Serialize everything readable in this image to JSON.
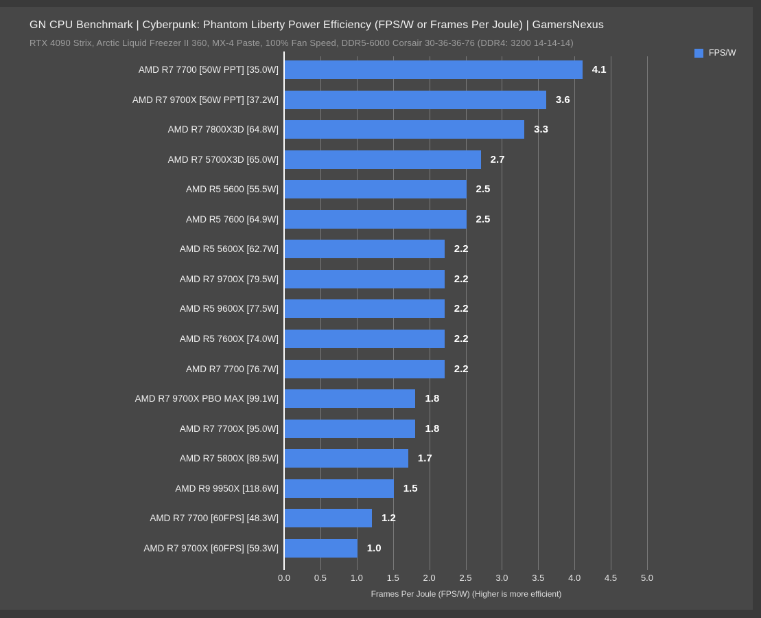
{
  "header": {
    "title": "GN CPU Benchmark | Cyberpunk: Phantom Liberty Power Efficiency (FPS/W or Frames Per Joule) | GamersNexus",
    "subtitle": "RTX 4090 Strix, Arctic Liquid Freezer II 360, MX-4 Paste, 100% Fan Speed, DDR5-6000 Corsair 30-36-36-76 (DDR4: 3200 14-14-14)"
  },
  "legend": {
    "label": "FPS/W",
    "color": "#4a86e8"
  },
  "colors": {
    "background": "#474747",
    "frame": "#3a3a3a",
    "bar": "#4a86e8",
    "gridline": "#7a7a7a",
    "axis_line": "#ffffff",
    "title_text": "#f2f2f2",
    "subtitle_text": "#9d9d9d",
    "value_text": "#ffffff"
  },
  "chart_data": {
    "type": "bar",
    "orientation": "horizontal",
    "title": "GN CPU Benchmark | Cyberpunk: Phantom Liberty Power Efficiency (FPS/W or Frames Per Joule) | GamersNexus",
    "subtitle": "RTX 4090 Strix, Arctic Liquid Freezer II 360, MX-4 Paste, 100% Fan Speed, DDR5-6000 Corsair 30-36-36-76 (DDR4: 3200 14-14-14)",
    "legend_entries": [
      "FPS/W"
    ],
    "legend_position": "top-right",
    "grid": true,
    "xlabel": "Frames Per Joule (FPS/W) (Higher is more efficient)",
    "ylabel": "",
    "xlim": [
      0.0,
      5.0
    ],
    "xtick_labels": [
      "0.0",
      "0.5",
      "1.0",
      "1.5",
      "2.0",
      "2.5",
      "3.0",
      "3.5",
      "4.0",
      "4.5",
      "5.0"
    ],
    "categories": [
      "AMD R7 7700 [50W PPT] [35.0W]",
      "AMD R7 9700X [50W PPT] [37.2W]",
      "AMD R7 7800X3D [64.8W]",
      "AMD R7 5700X3D [65.0W]",
      "AMD R5 5600 [55.5W]",
      "AMD R5 7600 [64.9W]",
      "AMD R5 5600X [62.7W]",
      "AMD R7 9700X [79.5W]",
      "AMD R5 9600X [77.5W]",
      "AMD R5 7600X [74.0W]",
      "AMD R7 7700 [76.7W]",
      "AMD R7 9700X PBO MAX [99.1W]",
      "AMD R7 7700X [95.0W]",
      "AMD R7 5800X [89.5W]",
      "AMD R9 9950X [118.6W]",
      "AMD R7 7700 [60FPS] [48.3W]",
      "AMD R7 9700X [60FPS] [59.3W]"
    ],
    "values": [
      4.1,
      3.6,
      3.3,
      2.7,
      2.5,
      2.5,
      2.2,
      2.2,
      2.2,
      2.2,
      2.2,
      1.8,
      1.8,
      1.7,
      1.5,
      1.2,
      1.0
    ]
  }
}
